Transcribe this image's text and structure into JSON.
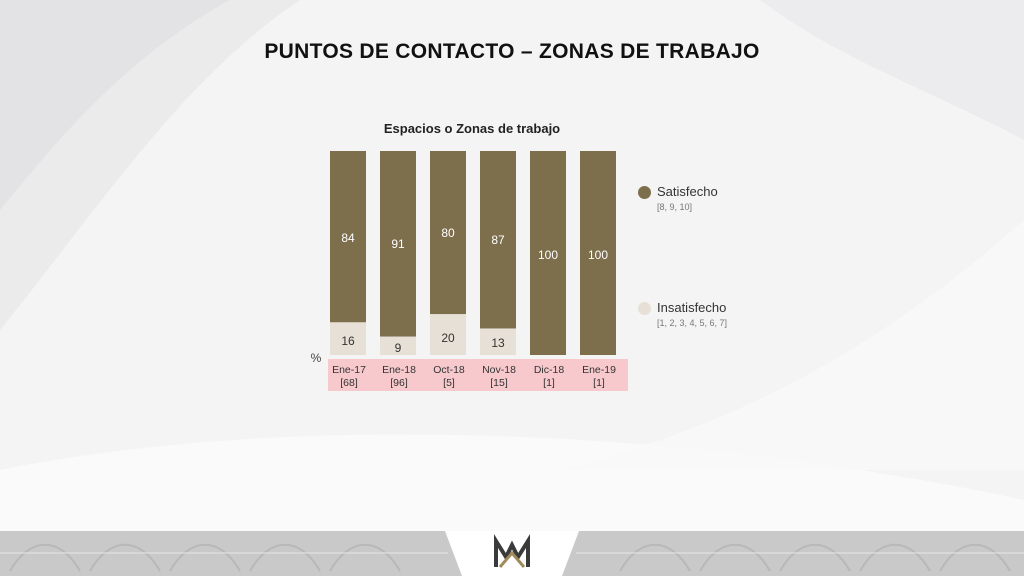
{
  "header": {
    "title": "PUNTOS DE CONTACTO – ZONAS DE TRABAJO"
  },
  "chart_data": {
    "type": "bar",
    "stacked": true,
    "title": "Espacios o Zonas de trabajo",
    "ylabel": "%",
    "ylim": [
      0,
      100
    ],
    "grid": false,
    "legend_position": "right",
    "categories": [
      "Ene-17",
      "Ene-18",
      "Oct-18",
      "Nov-18",
      "Dic-18",
      "Ene-19"
    ],
    "sample_sizes": [
      "[68]",
      "[96]",
      "[5]",
      "[15]",
      "[1]",
      "[1]"
    ],
    "series": [
      {
        "name": "Satisfecho",
        "range_label": "[8, 9, 10]",
        "color": "#7d6e4c",
        "values": [
          84,
          91,
          80,
          87,
          100,
          100
        ]
      },
      {
        "name": "Insatisfecho",
        "range_label": "[1, 2, 3, 4, 5, 6, 7]",
        "color": "#e6e0d6",
        "values": [
          16,
          9,
          20,
          13,
          0,
          0
        ]
      }
    ],
    "category_band_color": "#f7c9cd"
  },
  "footer": {
    "logo_icon": "mm-logo-icon",
    "band_color": "#c9c9c9"
  }
}
